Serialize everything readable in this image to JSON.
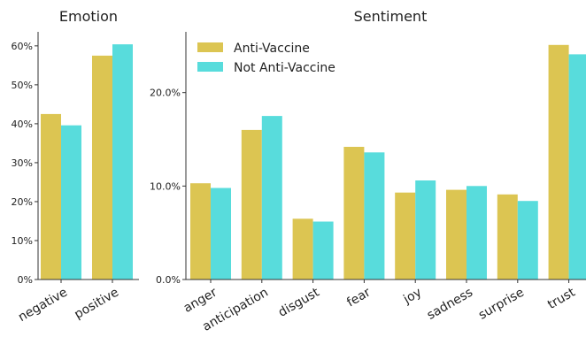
{
  "colors": {
    "anti": "#dcc552",
    "not_anti": "#58dcdc"
  },
  "chart_data": [
    {
      "type": "bar",
      "title": "Emotion",
      "categories": [
        "negative",
        "positive"
      ],
      "series": [
        {
          "name": "Anti-Vaccine",
          "values": [
            42.5,
            57.5
          ]
        },
        {
          "name": "Not Anti-Vaccine",
          "values": [
            39.6,
            60.4
          ]
        }
      ],
      "ylim": [
        0,
        63.6
      ],
      "yticks": [
        0,
        10,
        20,
        30,
        40,
        50,
        60
      ],
      "ytick_labels": [
        "0%",
        "10%",
        "20%",
        "30%",
        "40%",
        "50%",
        "60%"
      ],
      "grid": false,
      "legend": "none"
    },
    {
      "type": "bar",
      "title": "Sentiment",
      "categories": [
        "anger",
        "anticipation",
        "disgust",
        "fear",
        "joy",
        "sadness",
        "surprise",
        "trust"
      ],
      "series": [
        {
          "name": "Anti-Vaccine",
          "values": [
            10.3,
            16.0,
            6.5,
            14.2,
            9.3,
            9.6,
            9.1,
            25.1
          ]
        },
        {
          "name": "Not Anti-Vaccine",
          "values": [
            9.8,
            17.5,
            6.2,
            13.6,
            10.6,
            10.0,
            8.4,
            24.1
          ]
        }
      ],
      "ylim": [
        0,
        26.5
      ],
      "yticks": [
        0,
        10,
        20
      ],
      "ytick_labels": [
        "0.0%",
        "10.0%",
        "20.0%"
      ],
      "grid": false,
      "legend": "top-left"
    }
  ]
}
